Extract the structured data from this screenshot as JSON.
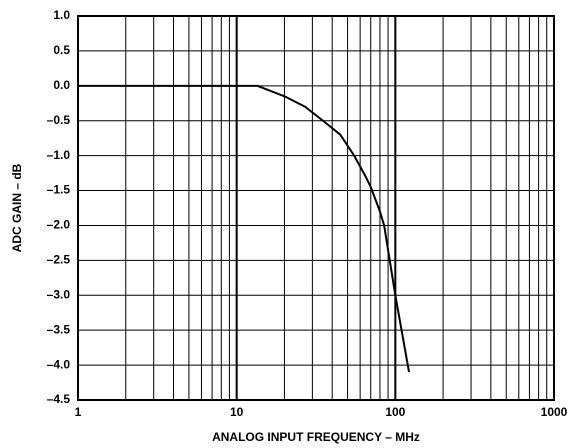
{
  "chart_data": {
    "type": "line",
    "xlabel": "ANALOG INPUT FREQUENCY – MHz",
    "ylabel": "ADC GAIN – dB",
    "x": [
      1,
      13.5,
      20,
      27,
      35,
      45,
      55,
      65,
      70,
      80,
      85,
      100,
      122
    ],
    "series": [
      {
        "color": "#000000",
        "values": [
          0,
          0,
          -0.15,
          -0.3,
          -0.5,
          -0.7,
          -1.0,
          -1.3,
          -1.45,
          -1.8,
          -2.0,
          -3.0,
          -4.1
        ]
      }
    ],
    "xscale": "log",
    "xlim": [
      1,
      1000
    ],
    "xticks": [
      1,
      10,
      100,
      1000
    ],
    "xminor": [
      2,
      3,
      4,
      5,
      6,
      7,
      8,
      9,
      20,
      30,
      40,
      50,
      60,
      70,
      80,
      90,
      200,
      300,
      400,
      500,
      600,
      700,
      800,
      900
    ],
    "ylim": [
      -4.5,
      1.0
    ],
    "yticks": [
      {
        "value": 1.0,
        "label": "1.0"
      },
      0.5,
      {
        "value": 0,
        "label": "0.0"
      },
      {
        "value": -0.5,
        "label": "–0.5"
      },
      {
        "value": -1.0,
        "label": "–1.0"
      },
      {
        "value": -1.5,
        "label": "–1.5"
      },
      {
        "value": -2.0,
        "label": "–2.0"
      },
      {
        "value": -2.5,
        "label": "–2.5"
      },
      {
        "value": -3.0,
        "label": "–3.0"
      },
      {
        "value": -3.5,
        "label": "–3.5"
      },
      {
        "value": -4.0,
        "label": "–4.0"
      },
      {
        "value": -4.5,
        "label": "–4.5"
      }
    ],
    "grid": true
  }
}
